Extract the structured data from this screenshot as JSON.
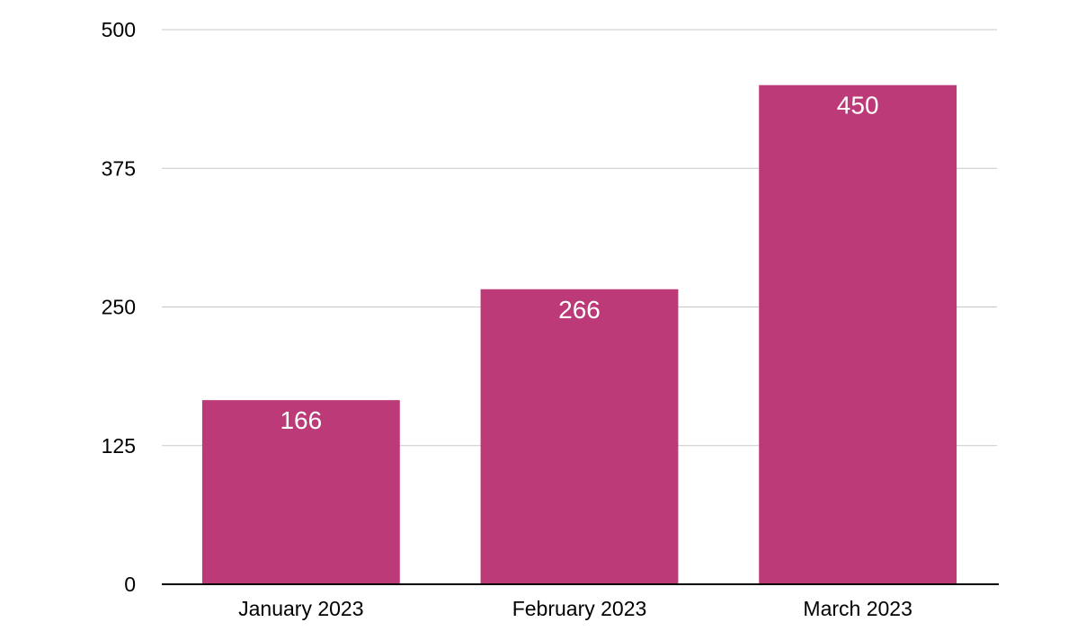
{
  "chart_data": {
    "type": "bar",
    "title": "",
    "xlabel": "",
    "ylabel": "",
    "categories": [
      "January 2023",
      "February 2023",
      "March 2023"
    ],
    "values": [
      166,
      266,
      450
    ],
    "data_labels": [
      "166",
      "266",
      "450"
    ],
    "ylim": [
      0,
      500
    ],
    "yticks": [
      0,
      125,
      250,
      375,
      500
    ],
    "ytick_labels": [
      "0",
      "125",
      "250",
      "375",
      "500"
    ],
    "grid": true,
    "legend": "none",
    "colors": {
      "bar": "#bc3a78",
      "grid": "#c8c8c8",
      "axis": "#000000",
      "data_label": "#ffffff"
    }
  }
}
